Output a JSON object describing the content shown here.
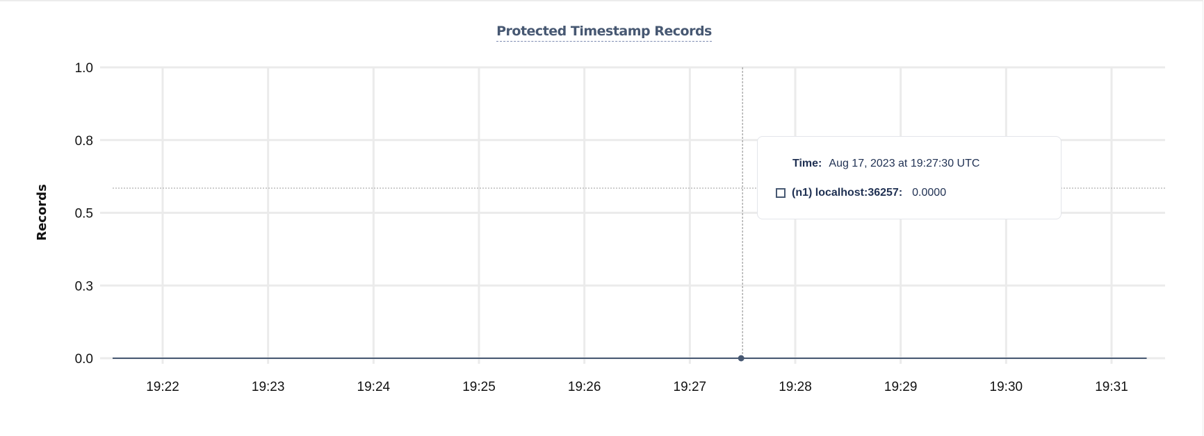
{
  "chart_data": {
    "type": "line",
    "title": "Protected Timestamp Records",
    "ylabel": "Records",
    "xlabel": "",
    "ylim": [
      0,
      1
    ],
    "y_ticks": [
      {
        "value": 0.0,
        "label": "0.0"
      },
      {
        "value": 0.25,
        "label": "0.3"
      },
      {
        "value": 0.5,
        "label": "0.5"
      },
      {
        "value": 0.75,
        "label": "0.8"
      },
      {
        "value": 1.0,
        "label": "1.0"
      }
    ],
    "x_ticks": [
      "19:22",
      "19:23",
      "19:24",
      "19:25",
      "19:26",
      "19:27",
      "19:28",
      "19:29",
      "19:30",
      "19:31"
    ],
    "xlim": [
      "19:21:31",
      "19:31:50"
    ],
    "grid": true,
    "series": [
      {
        "name": "(n1) localhost:36257",
        "color": "#475872",
        "x": [
          "19:21:31",
          "19:31:20"
        ],
        "y": [
          0,
          0
        ]
      }
    ],
    "hover": {
      "x": "19:27:30",
      "y": 0
    }
  },
  "tooltip": {
    "time_label": "Time:",
    "time_value": "Aug 17, 2023 at 19:27:30 UTC",
    "series_label": "(n1) localhost:36257:",
    "series_value": "0.0000"
  }
}
